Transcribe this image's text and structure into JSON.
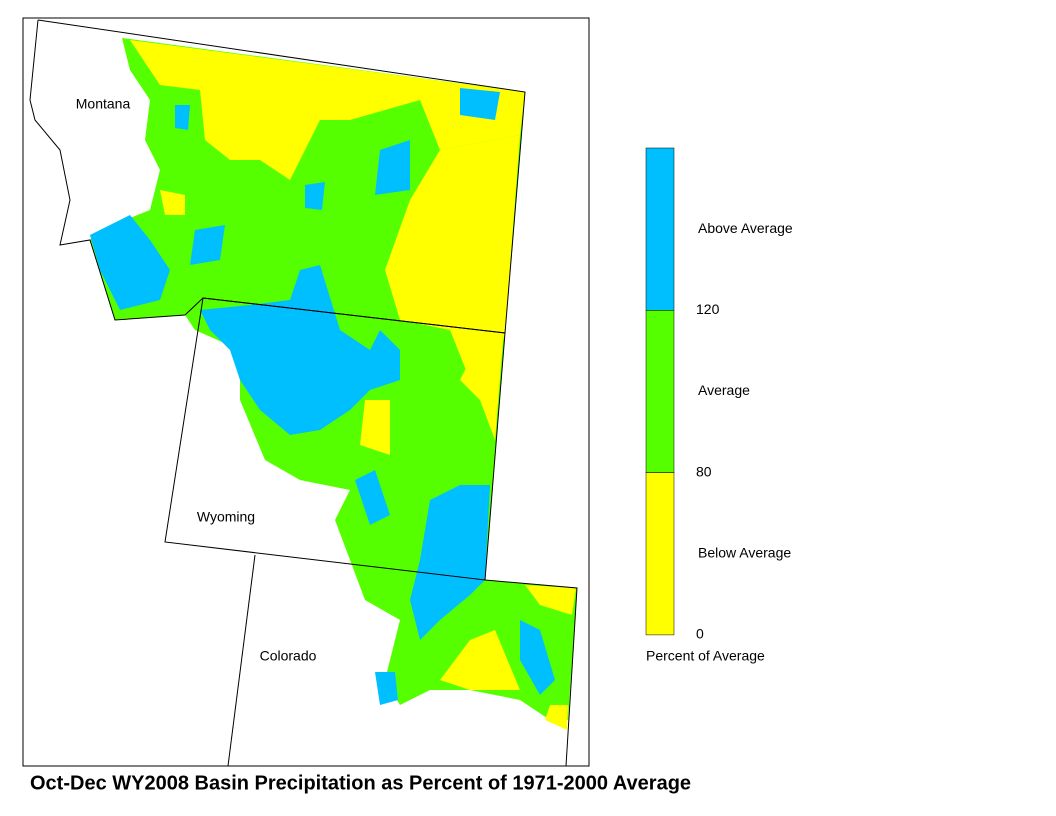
{
  "title": "Oct-Dec WY2008 Basin Precipitation as Percent of 1971-2000 Average",
  "map": {
    "states": [
      "Montana",
      "Wyoming",
      "Colorado"
    ]
  },
  "legend": {
    "classes": [
      {
        "label": "Above Average",
        "color": "#00bfff"
      },
      {
        "label": "Average",
        "color": "#55ff00"
      },
      {
        "label": "Below Average",
        "color": "#ffff00"
      }
    ],
    "breaks": [
      120,
      80,
      0
    ],
    "caption": "Percent of Average"
  }
}
